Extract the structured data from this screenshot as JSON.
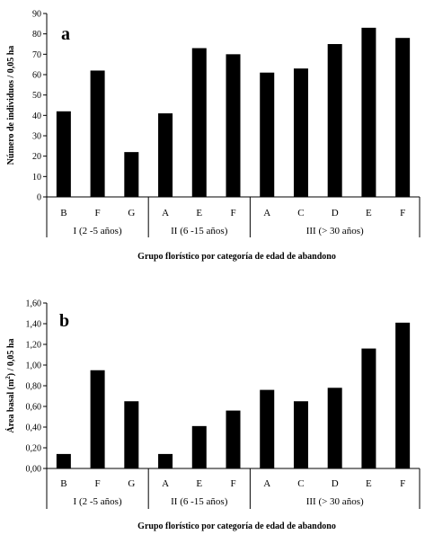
{
  "chart_data": [
    {
      "type": "bar",
      "panel_label": "a",
      "ylabel": "Número de individuos / 0,05 ha",
      "xlabel": "Grupo florístico por categoría de edad de abandono",
      "ylim": [
        0,
        90
      ],
      "yticks": [
        "0",
        "10",
        "20",
        "30",
        "40",
        "50",
        "60",
        "70",
        "80",
        "90"
      ],
      "categories": [
        "B",
        "F",
        "G",
        "A",
        "E",
        "F",
        "A",
        "C",
        "D",
        "E",
        "F"
      ],
      "values": [
        42,
        62,
        22,
        41,
        73,
        70,
        61,
        63,
        75,
        83,
        78
      ],
      "groups": [
        {
          "label": "I (2 -5 años)",
          "count": 3
        },
        {
          "label": "II (6 -15 años)",
          "count": 3
        },
        {
          "label": "III (> 30 años)",
          "count": 5
        }
      ]
    },
    {
      "type": "bar",
      "panel_label": "b",
      "ylabel_prefix": "Área basal (m",
      "ylabel_sup": "2",
      "ylabel_suffix": ") / 0,05 ha",
      "xlabel": "Grupo florístico por categoría de edad de abandono",
      "ylim": [
        0,
        1.6
      ],
      "yticks": [
        "0,00",
        "0,20",
        "0,40",
        "0,60",
        "0,80",
        "1,00",
        "1,20",
        "1,40",
        "1,60"
      ],
      "categories": [
        "B",
        "F",
        "G",
        "A",
        "E",
        "F",
        "A",
        "C",
        "D",
        "E",
        "F"
      ],
      "values": [
        0.14,
        0.95,
        0.65,
        0.14,
        0.41,
        0.56,
        0.76,
        0.65,
        0.78,
        1.16,
        1.41
      ],
      "groups": [
        {
          "label": "I (2 -5 años)",
          "count": 3
        },
        {
          "label": "II (6 -15 años)",
          "count": 3
        },
        {
          "label": "III (> 30 años)",
          "count": 5
        }
      ]
    }
  ]
}
